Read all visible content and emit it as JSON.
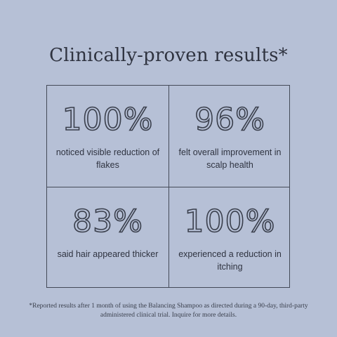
{
  "title": "Clinically-proven results*",
  "results": [
    {
      "stat": "100%",
      "description": "noticed visible reduction of flakes"
    },
    {
      "stat": "96%",
      "description": "felt overall improvement in scalp health"
    },
    {
      "stat": "83%",
      "description": "said hair appeared thicker"
    },
    {
      "stat": "100%",
      "description": "experienced a reduction in itching"
    }
  ],
  "footnote": "*Reported results after 1 month of using the Balancing Shampoo as directed during a 90-day, third-party administered clinical trial. Inquire for more details.",
  "colors": {
    "background": "#b6c0d6",
    "text": "#2f3340",
    "lines": "#444a58"
  }
}
